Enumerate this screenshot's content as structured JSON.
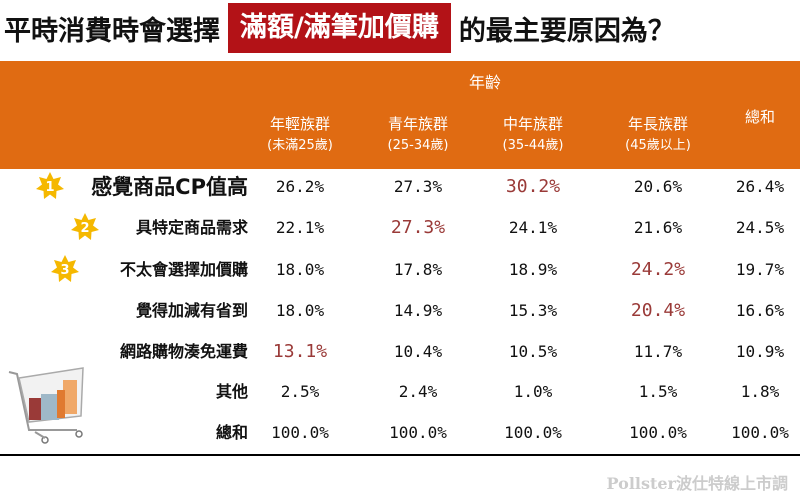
{
  "title": {
    "prefix": "平時消費時會選擇",
    "highlight": "滿額/滿筆加價購",
    "suffix": "的最主要原因為？"
  },
  "colors": {
    "header": "#e06b12",
    "highlight_box": "#b31217",
    "highlight_value": "#9a3a38",
    "star": "#f5b800"
  },
  "chart_data": {
    "type": "table",
    "group_header": "年齡",
    "columns": [
      {
        "name": "年輕族群",
        "sub": "(未滿25歲)"
      },
      {
        "name": "青年族群",
        "sub": "(25-34歲)"
      },
      {
        "name": "中年族群",
        "sub": "(35-44歲)"
      },
      {
        "name": "年長族群",
        "sub": "(45歲以上)"
      },
      {
        "name": "總和",
        "sub": ""
      }
    ],
    "rows": [
      {
        "rank": "1",
        "label": "感覺商品CP值高",
        "values": [
          "26.2%",
          "27.3%",
          "30.2%",
          "20.6%",
          "26.4%"
        ],
        "highlight": 2
      },
      {
        "rank": "2",
        "label": "具特定商品需求",
        "values": [
          "22.1%",
          "27.3%",
          "24.1%",
          "21.6%",
          "24.5%"
        ],
        "highlight": 1
      },
      {
        "rank": "3",
        "label": "不太會選擇加價購",
        "values": [
          "18.0%",
          "17.8%",
          "18.9%",
          "24.2%",
          "19.7%"
        ],
        "highlight": 3
      },
      {
        "rank": "",
        "label": "覺得加減有省到",
        "values": [
          "18.0%",
          "14.9%",
          "15.3%",
          "20.4%",
          "16.6%"
        ],
        "highlight": 3
      },
      {
        "rank": "",
        "label": "網路購物湊免運費",
        "values": [
          "13.1%",
          "10.4%",
          "10.5%",
          "11.7%",
          "10.9%"
        ],
        "highlight": 0
      },
      {
        "rank": "",
        "label": "其他",
        "values": [
          "2.5%",
          "2.4%",
          "1.0%",
          "1.5%",
          "1.8%"
        ],
        "highlight": -1
      },
      {
        "rank": "",
        "label": "總和",
        "values": [
          "100.0%",
          "100.0%",
          "100.0%",
          "100.0%",
          "100.0%"
        ],
        "highlight": -1
      }
    ]
  },
  "watermark": "Pollster波仕特線上市調"
}
